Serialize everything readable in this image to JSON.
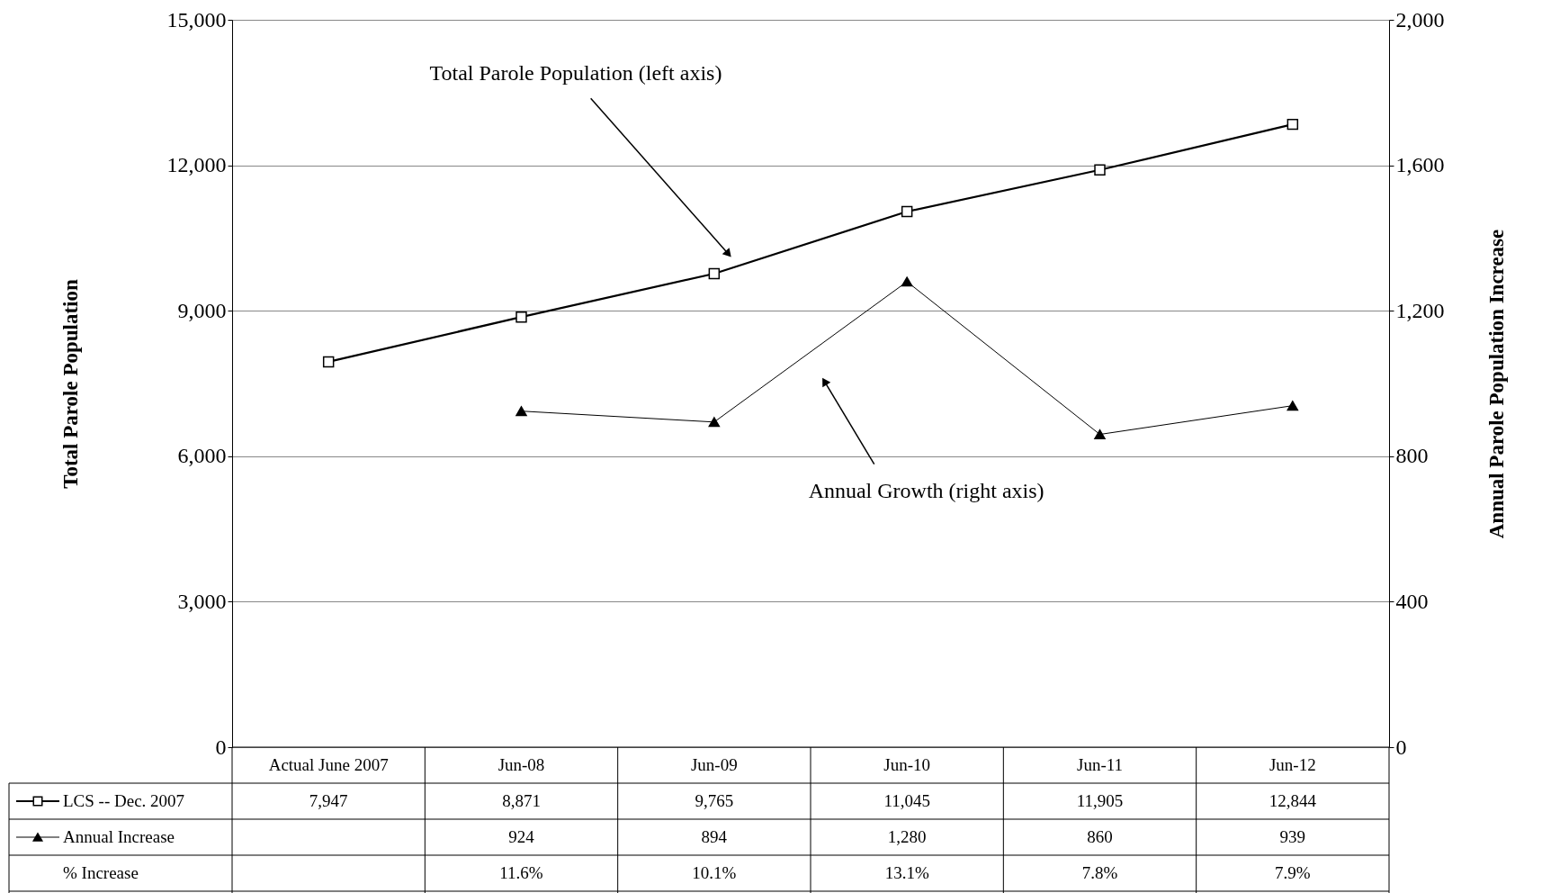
{
  "chart_data": {
    "type": "line",
    "categories": [
      "Actual June 2007",
      "Jun-08",
      "Jun-09",
      "Jun-10",
      "Jun-11",
      "Jun-12"
    ],
    "ylabel": "Total Parole Population",
    "y2label": "Annual Parole Population Increase",
    "ylim": [
      0,
      15000
    ],
    "yticks": [
      0,
      {
        "value": 3000,
        "label": "3,000"
      },
      {
        "value": 6000,
        "label": "6,000"
      },
      {
        "value": 9000,
        "label": "9,000"
      },
      {
        "value": 12000,
        "label": "12,000"
      },
      {
        "value": 15000,
        "label": "15,000"
      }
    ],
    "y2lim": [
      0,
      2000
    ],
    "y2ticks": [
      0,
      400,
      800,
      {
        "value": 1200,
        "label": "1,200"
      },
      {
        "value": 1600,
        "label": "1,600"
      },
      {
        "value": 2000,
        "label": "2,000"
      }
    ],
    "grid": "y",
    "legend": "bottom left",
    "series": [
      {
        "name": "LCS -- Dec. 2007",
        "color": "#000000",
        "marker": "square",
        "values": [
          7947,
          8871,
          9765,
          11045,
          11905,
          12844
        ],
        "value_labels": [
          "7,947",
          "8,871",
          "9,765",
          "11,045",
          "11,905",
          "12,844"
        ]
      },
      {
        "name": "Annual Increase",
        "color": "#000000",
        "marker": "triangle",
        "axis": "y2",
        "values": [
          null,
          924,
          894,
          1280,
          860,
          939
        ],
        "value_labels": [
          null,
          "924",
          "894",
          "1,280",
          "860",
          "939"
        ]
      }
    ],
    "annotations": [
      "Total Parole Population (left axis)",
      "Annual Growth  (right axis)",
      "% Increase",
      "11.6%",
      "10.1%",
      "13.1%",
      "7.8%",
      "7.9%"
    ]
  }
}
